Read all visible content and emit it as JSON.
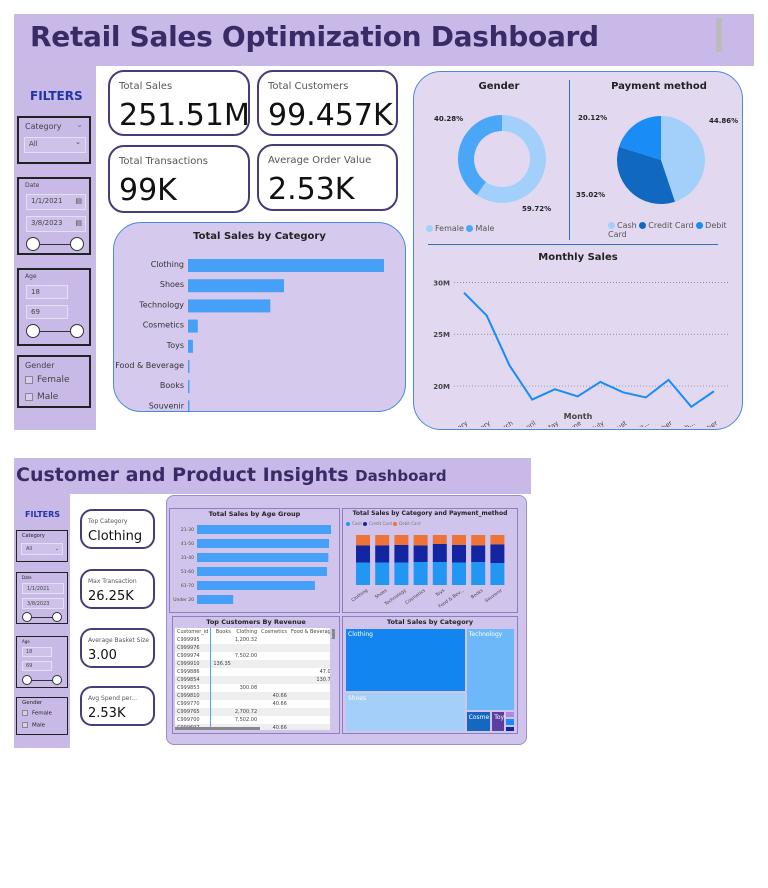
{
  "dash1": {
    "title": "Retail Sales Optimization Dashboard",
    "filters": {
      "heading": "FILTERS",
      "category_label": "Category",
      "category_value": "All",
      "date_label": "Date",
      "date_start": "1/1/2021",
      "date_end": "3/8/2023",
      "age_label": "Age",
      "age_min": "18",
      "age_max": "69",
      "gender_label": "Gender",
      "gender_options": [
        "Female",
        "Male"
      ]
    },
    "kpis": [
      {
        "label": "Total Sales",
        "value": "251.51M"
      },
      {
        "label": "Total Customers",
        "value": "99.457K"
      },
      {
        "label": "Total Transactions",
        "value": "99K"
      },
      {
        "label": "Average Order Value",
        "value": "2.53K"
      }
    ]
  },
  "dash2": {
    "title_main": "Customer and Product Insights",
    "title_suffix": "Dashboard",
    "filters": {
      "heading": "FILTERS",
      "category_label": "Category",
      "category_value": "All",
      "date_label": "Date",
      "date_start": "1/1/2021",
      "date_end": "3/8/2023",
      "age_label": "Age",
      "age_min": "18",
      "age_max": "69",
      "gender_label": "Gender",
      "gender_options": [
        "Female",
        "Male"
      ]
    },
    "kpis": [
      {
        "label": "Top Category",
        "value": "Clothing"
      },
      {
        "label": "Max Transaction",
        "value": "26.25K"
      },
      {
        "label": "Average Basket Size",
        "value": "3.00"
      },
      {
        "label": "Avg Spend per...",
        "value": "2.53K"
      }
    ],
    "table": {
      "title": "Top Customers By Revenue",
      "columns": [
        "Customer_id",
        "Books",
        "Clothing",
        "Cosmetics",
        "Food & Beverage"
      ],
      "rows": [
        [
          "C999995",
          "",
          "1,200.32",
          "",
          ""
        ],
        [
          "C999976",
          "",
          "",
          "",
          ""
        ],
        [
          "C999974",
          "",
          "7,502.00",
          "",
          ""
        ],
        [
          "C999910",
          "136.35",
          "",
          "",
          ""
        ],
        [
          "C999886",
          "",
          "",
          "",
          "47.07"
        ],
        [
          "C999854",
          "",
          "",
          "",
          "130.75"
        ],
        [
          "C999853",
          "",
          "300.08",
          "",
          ""
        ],
        [
          "C999810",
          "",
          "",
          "40.66",
          ""
        ],
        [
          "C999770",
          "",
          "",
          "40.66",
          ""
        ],
        [
          "C999765",
          "",
          "2,700.72",
          "",
          ""
        ],
        [
          "C999700",
          "",
          "7,502.00",
          "",
          ""
        ],
        [
          "C999697",
          "",
          "",
          "40.66",
          ""
        ]
      ]
    }
  },
  "chart_data": [
    {
      "id": "cat",
      "type": "bar",
      "orientation": "horizontal",
      "title": "Total Sales by Category",
      "categories": [
        "Clothing",
        "Shoes",
        "Technology",
        "Cosmetics",
        "Toys",
        "Food & Beverage",
        "Books",
        "Souvenir"
      ],
      "values": [
        100,
        49,
        42,
        5,
        2.5,
        0.6,
        0.5,
        0.3
      ],
      "color": "#46a0f8"
    },
    {
      "id": "gender",
      "type": "pie",
      "variant": "donut",
      "title": "Gender",
      "labels": [
        "Female",
        "Male"
      ],
      "values": [
        59.72,
        40.28
      ],
      "value_labels": [
        "59.72%",
        "40.28%"
      ],
      "colors": [
        "#a3d0fb",
        "#4aa6f7"
      ]
    },
    {
      "id": "payment",
      "type": "pie",
      "title": "Payment method",
      "labels": [
        "Cash",
        "Credit Card",
        "Debit Card"
      ],
      "values": [
        44.86,
        35.02,
        20.12
      ],
      "value_labels": [
        "44.86%",
        "35.02%",
        "20.12%"
      ],
      "colors": [
        "#a3d0fb",
        "#1168c0",
        "#1a8cf5"
      ]
    },
    {
      "id": "monthly",
      "type": "line",
      "title": "Monthly Sales",
      "xlabel": "Month",
      "ylabel": "",
      "categories": [
        "January",
        "February",
        "March",
        "April",
        "May",
        "June",
        "July",
        "August",
        "Septem...",
        "October",
        "Novemb...",
        "December"
      ],
      "values": [
        29.0,
        26.8,
        22.0,
        18.7,
        19.7,
        19.0,
        20.4,
        19.4,
        18.9,
        20.6,
        18.0,
        19.5
      ],
      "unit": "M",
      "yticks": [
        "20M",
        "25M",
        "30M"
      ],
      "ytick_values": [
        20,
        25,
        30
      ],
      "ylim": [
        17.5,
        31
      ],
      "color": "#1a8cf5"
    },
    {
      "id": "age",
      "type": "bar",
      "orientation": "horizontal",
      "title": "Total Sales by Age Group",
      "categories": [
        "21-30",
        "41-50",
        "31-40",
        "51-60",
        "61-70",
        "Under 20"
      ],
      "values": [
        100,
        98.5,
        98,
        97,
        88,
        27
      ],
      "color": "#46a0f8"
    },
    {
      "id": "catpay",
      "type": "bar",
      "stacked": true,
      "percent": true,
      "title": "Total Sales by Category and Payment_method",
      "categories": [
        "Clothing",
        "Shoes",
        "Technology",
        "Cosmetics",
        "Toys",
        "Food & Bev...",
        "Books",
        "Souvenir"
      ],
      "series": [
        {
          "name": "Cash",
          "values": [
            45,
            45,
            45,
            46,
            46,
            45,
            46,
            44
          ],
          "color": "#2196f3"
        },
        {
          "name": "Credit Card",
          "values": [
            34,
            34,
            35,
            33,
            36,
            35,
            33,
            37
          ],
          "color": "#1325a0"
        },
        {
          "name": "Debit Card",
          "values": [
            21,
            21,
            20,
            21,
            18,
            20,
            21,
            19
          ],
          "color": "#ee7336"
        }
      ]
    },
    {
      "id": "treemap",
      "type": "treemap",
      "title": "Total Sales by Category",
      "labels": [
        "Clothing",
        "Shoes",
        "Technology",
        "Cosme...",
        "Toys"
      ],
      "colors": [
        "#1385f0",
        "#a3cff9",
        "#6db8f9",
        "#1568c2",
        "#5a3fa0"
      ]
    }
  ]
}
